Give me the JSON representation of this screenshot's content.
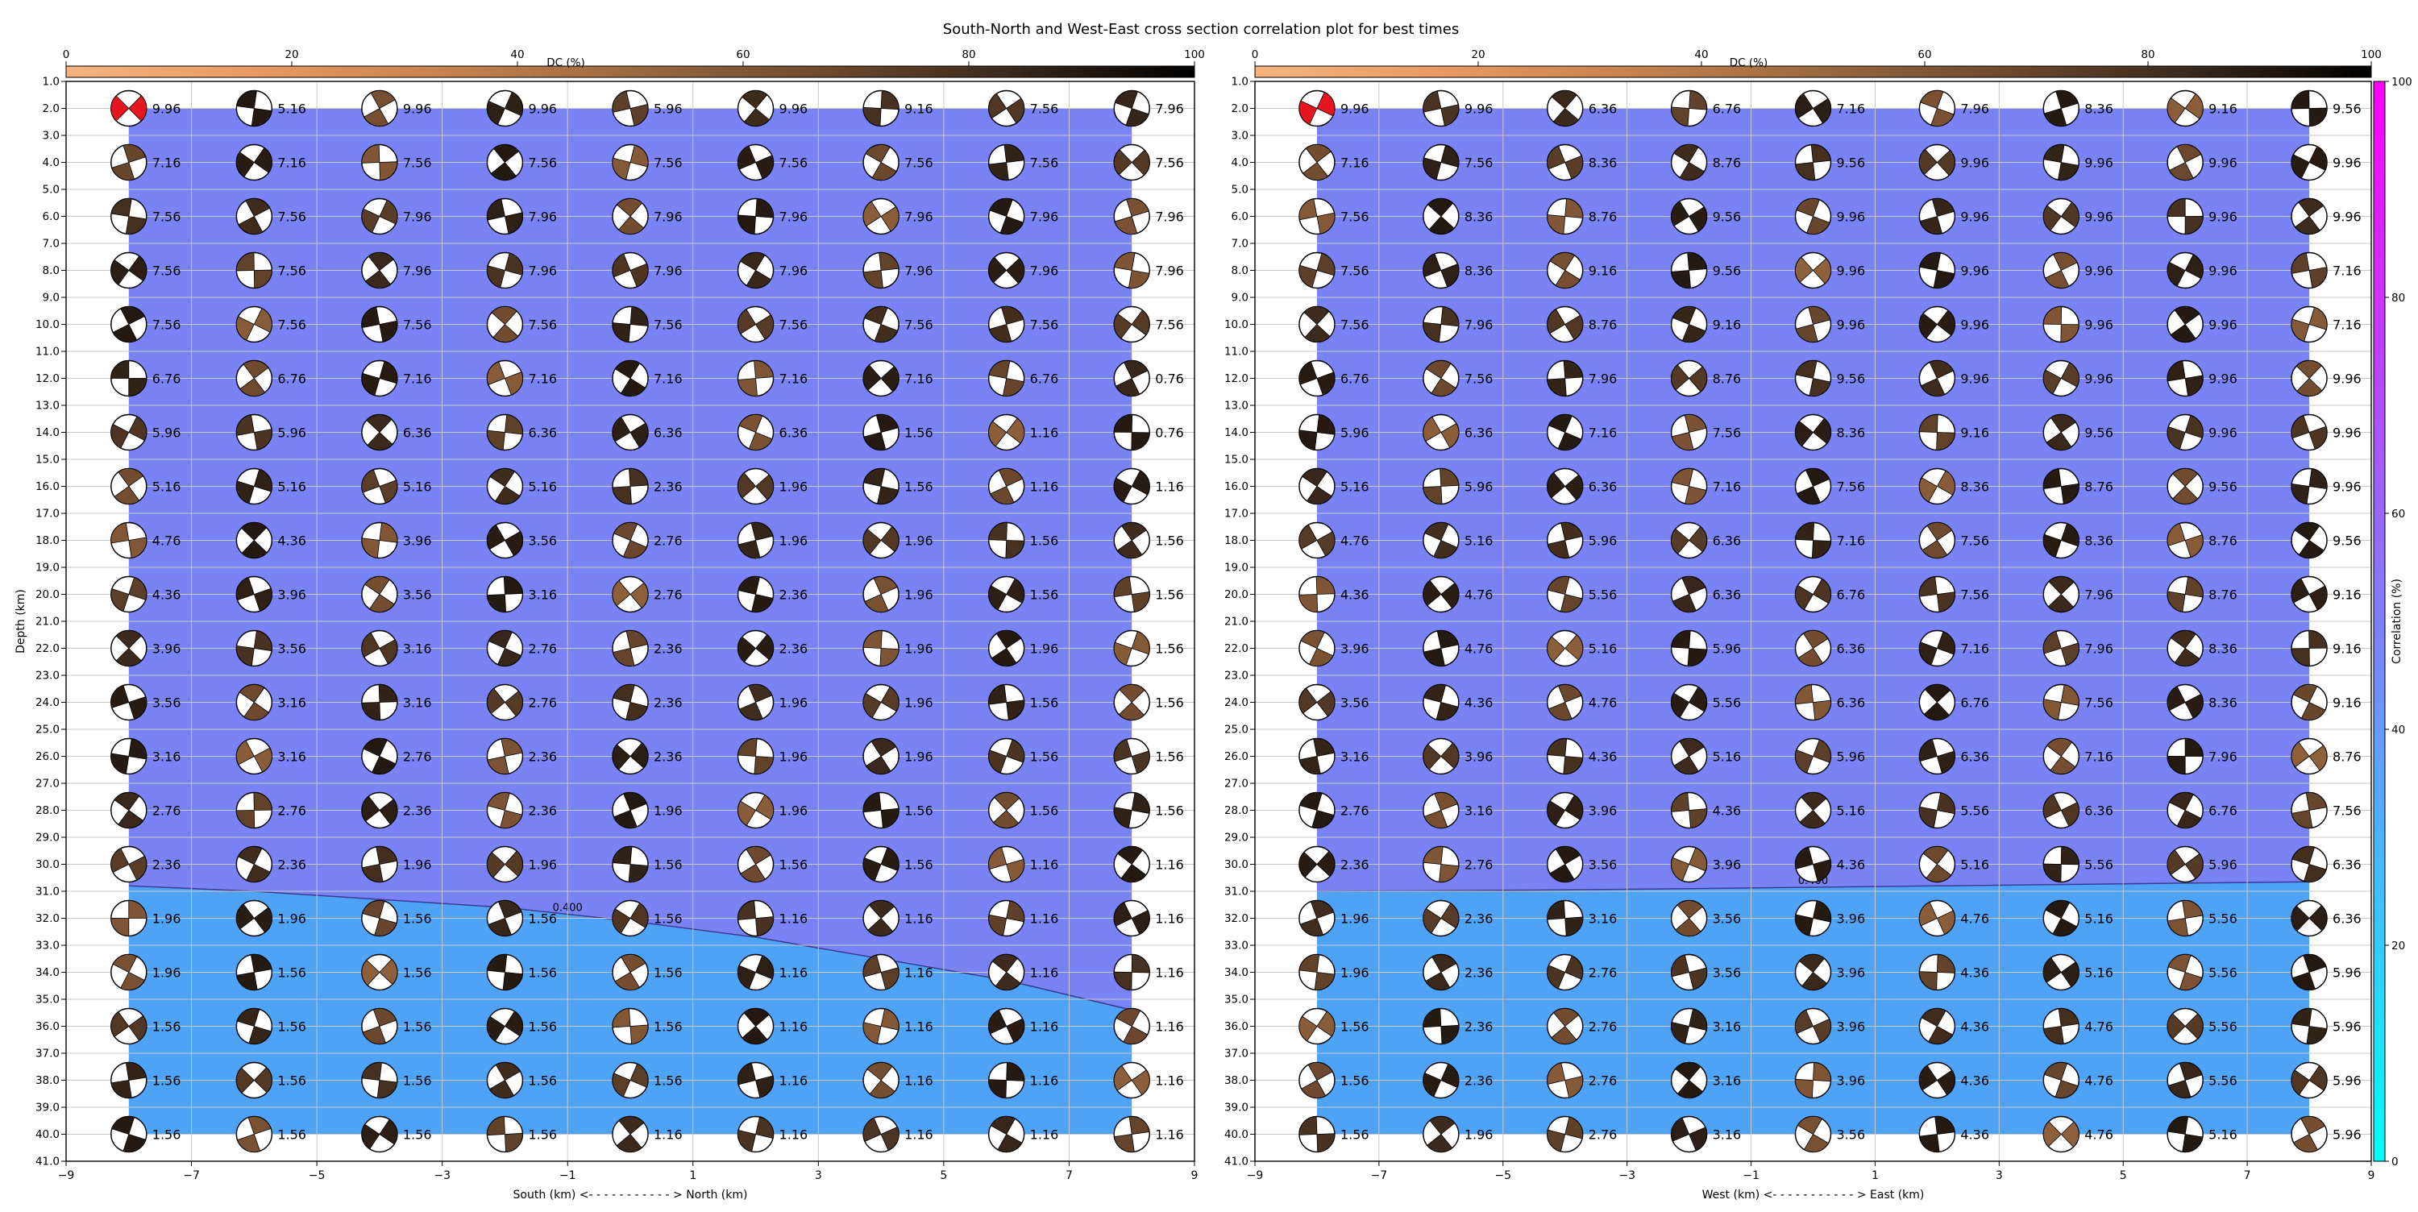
{
  "figure": {
    "title": "South-North and West-East cross section correlation plot for best times"
  },
  "colors": {
    "fill_low": "#4fa3f7",
    "fill_high": "#7a83f6",
    "grid": "#c8c8c8",
    "contour": "#3b3b8f",
    "dc_cmap": [
      "#f5b47e",
      "#e89a63",
      "#c8824d",
      "#9c6a40",
      "#6f4a2f",
      "#3c2a1c",
      "#000000"
    ],
    "corr_cmap": [
      "#00ffff",
      "#ff00ff"
    ]
  },
  "dc_colorbar": {
    "label": "DC (%)",
    "ticks": [
      "0",
      "20",
      "40",
      "60",
      "80",
      "100"
    ]
  },
  "corr_colorbar": {
    "label": "Correlation (%)",
    "ticks": [
      "0",
      "20",
      "40",
      "60",
      "80",
      "100"
    ]
  },
  "chart_data": [
    {
      "type": "heatmap",
      "panel": "south-north",
      "xlabel": "South (km) <- - - - - - - - - - - > North (km)",
      "ylabel": "Depth (km)",
      "xlim": [
        -9,
        9
      ],
      "ylim": [
        1,
        41
      ],
      "x_ticks": [
        "−9",
        "−7",
        "−5",
        "−3",
        "−1",
        "1",
        "3",
        "5",
        "7",
        "9"
      ],
      "y_ticks": [
        "1.0",
        "2.0",
        "3.0",
        "4.0",
        "5.0",
        "6.0",
        "7.0",
        "8.0",
        "9.0",
        "10.0",
        "11.0",
        "12.0",
        "13.0",
        "14.0",
        "15.0",
        "16.0",
        "17.0",
        "18.0",
        "19.0",
        "20.0",
        "21.0",
        "22.0",
        "23.0",
        "24.0",
        "25.0",
        "26.0",
        "27.0",
        "28.0",
        "29.0",
        "30.0",
        "31.0",
        "32.0",
        "33.0",
        "34.0",
        "35.0",
        "36.0",
        "37.0",
        "38.0",
        "39.0",
        "40.0",
        "41.0"
      ],
      "x": [
        -8,
        -6,
        -4,
        -2,
        0,
        2,
        4,
        6,
        8
      ],
      "depths": [
        2,
        4,
        6,
        8,
        10,
        12,
        14,
        16,
        18,
        20,
        22,
        24,
        26,
        28,
        30,
        32,
        34,
        36,
        38,
        40
      ],
      "contour_label": "0.400",
      "contour_label_x": -1,
      "contour_depth": [
        30.8,
        31.0,
        31.3,
        31.6,
        32.1,
        32.7,
        33.5,
        34.3,
        35.4
      ],
      "times": [
        [
          "9.96",
          "5.16",
          "9.96",
          "9.96",
          "5.96",
          "9.96",
          "9.16",
          "7.56",
          "7.96"
        ],
        [
          "7.16",
          "7.16",
          "7.56",
          "7.56",
          "7.56",
          "7.56",
          "7.56",
          "7.56",
          "7.56"
        ],
        [
          "7.56",
          "7.56",
          "7.96",
          "7.96",
          "7.96",
          "7.96",
          "7.96",
          "7.96",
          "7.96"
        ],
        [
          "7.56",
          "7.56",
          "7.96",
          "7.96",
          "7.96",
          "7.96",
          "7.96",
          "7.96",
          "7.96"
        ],
        [
          "7.56",
          "7.56",
          "7.56",
          "7.56",
          "7.56",
          "7.56",
          "7.56",
          "7.56",
          "7.56"
        ],
        [
          "6.76",
          "6.76",
          "7.16",
          "7.16",
          "7.16",
          "7.16",
          "7.16",
          "6.76",
          "0.76"
        ],
        [
          "5.96",
          "5.96",
          "6.36",
          "6.36",
          "6.36",
          "6.36",
          "1.56",
          "1.16",
          "0.76"
        ],
        [
          "5.16",
          "5.16",
          "5.16",
          "5.16",
          "2.36",
          "1.96",
          "1.56",
          "1.16",
          "1.16"
        ],
        [
          "4.76",
          "4.36",
          "3.96",
          "3.56",
          "2.76",
          "1.96",
          "1.96",
          "1.56",
          "1.56"
        ],
        [
          "4.36",
          "3.96",
          "3.56",
          "3.16",
          "2.76",
          "2.36",
          "1.96",
          "1.56",
          "1.56"
        ],
        [
          "3.96",
          "3.56",
          "3.16",
          "2.76",
          "2.36",
          "2.36",
          "1.96",
          "1.96",
          "1.56"
        ],
        [
          "3.56",
          "3.16",
          "3.16",
          "2.76",
          "2.36",
          "1.96",
          "1.96",
          "1.56",
          "1.56"
        ],
        [
          "3.16",
          "3.16",
          "2.76",
          "2.36",
          "2.36",
          "1.96",
          "1.96",
          "1.56",
          "1.56"
        ],
        [
          "2.76",
          "2.76",
          "2.36",
          "2.36",
          "1.96",
          "1.96",
          "1.56",
          "1.56",
          "1.56"
        ],
        [
          "2.36",
          "2.36",
          "1.96",
          "1.96",
          "1.56",
          "1.56",
          "1.56",
          "1.16",
          "1.16"
        ],
        [
          "1.96",
          "1.96",
          "1.56",
          "1.56",
          "1.56",
          "1.16",
          "1.16",
          "1.16",
          "1.16"
        ],
        [
          "1.96",
          "1.56",
          "1.56",
          "1.56",
          "1.56",
          "1.16",
          "1.16",
          "1.16",
          "1.16"
        ],
        [
          "1.56",
          "1.56",
          "1.56",
          "1.56",
          "1.56",
          "1.16",
          "1.16",
          "1.16",
          "1.16"
        ],
        [
          "1.56",
          "1.56",
          "1.56",
          "1.56",
          "1.56",
          "1.16",
          "1.16",
          "1.16",
          "1.16"
        ],
        [
          "1.56",
          "1.56",
          "1.56",
          "1.56",
          "1.16",
          "1.16",
          "1.16",
          "1.16",
          "1.16"
        ]
      ]
    },
    {
      "type": "heatmap",
      "panel": "west-east",
      "xlabel": "West (km) <- - - - - - - - - - - > East (km)",
      "ylabel": "",
      "xlim": [
        -9,
        9
      ],
      "ylim": [
        1,
        41
      ],
      "x_ticks": [
        "−9",
        "−7",
        "−5",
        "−3",
        "−1",
        "1",
        "3",
        "5",
        "7",
        "9"
      ],
      "y_ticks": [
        "1.0",
        "2.0",
        "3.0",
        "4.0",
        "5.0",
        "6.0",
        "7.0",
        "8.0",
        "9.0",
        "10.0",
        "11.0",
        "12.0",
        "13.0",
        "14.0",
        "15.0",
        "16.0",
        "17.0",
        "18.0",
        "19.0",
        "20.0",
        "21.0",
        "22.0",
        "23.0",
        "24.0",
        "25.0",
        "26.0",
        "27.0",
        "28.0",
        "29.0",
        "30.0",
        "31.0",
        "32.0",
        "33.0",
        "34.0",
        "35.0",
        "36.0",
        "37.0",
        "38.0",
        "39.0",
        "40.0",
        "41.0"
      ],
      "x": [
        -8,
        -6,
        -4,
        -2,
        0,
        2,
        4,
        6,
        8
      ],
      "depths": [
        2,
        4,
        6,
        8,
        10,
        12,
        14,
        16,
        18,
        20,
        22,
        24,
        26,
        28,
        30,
        32,
        34,
        36,
        38,
        40
      ],
      "contour_label": "0.400",
      "contour_label_x": 0,
      "contour_depth": [
        31.0,
        30.98,
        30.95,
        30.9,
        30.85,
        30.8,
        30.75,
        30.7,
        30.65
      ],
      "times": [
        [
          "9.96",
          "9.96",
          "6.36",
          "6.76",
          "7.16",
          "7.96",
          "8.36",
          "9.16",
          "9.56"
        ],
        [
          "7.16",
          "7.56",
          "8.36",
          "8.76",
          "9.56",
          "9.96",
          "9.96",
          "9.96",
          "9.96"
        ],
        [
          "7.56",
          "8.36",
          "8.76",
          "9.56",
          "9.96",
          "9.96",
          "9.96",
          "9.96",
          "9.96"
        ],
        [
          "7.56",
          "8.36",
          "9.16",
          "9.56",
          "9.96",
          "9.96",
          "9.96",
          "9.96",
          "7.16"
        ],
        [
          "7.56",
          "7.96",
          "8.76",
          "9.16",
          "9.96",
          "9.96",
          "9.96",
          "9.96",
          "7.16"
        ],
        [
          "6.76",
          "7.56",
          "7.96",
          "8.76",
          "9.56",
          "9.96",
          "9.96",
          "9.96",
          "9.96"
        ],
        [
          "5.96",
          "6.36",
          "7.16",
          "7.56",
          "8.36",
          "9.16",
          "9.56",
          "9.96",
          "9.96"
        ],
        [
          "5.16",
          "5.96",
          "6.36",
          "7.16",
          "7.56",
          "8.36",
          "8.76",
          "9.56",
          "9.96"
        ],
        [
          "4.76",
          "5.16",
          "5.96",
          "6.36",
          "7.16",
          "7.56",
          "8.36",
          "8.76",
          "9.56"
        ],
        [
          "4.36",
          "4.76",
          "5.56",
          "6.36",
          "6.76",
          "7.56",
          "7.96",
          "8.76",
          "9.16"
        ],
        [
          "3.96",
          "4.76",
          "5.16",
          "5.96",
          "6.36",
          "7.16",
          "7.96",
          "8.36",
          "9.16"
        ],
        [
          "3.56",
          "4.36",
          "4.76",
          "5.56",
          "6.36",
          "6.76",
          "7.56",
          "8.36",
          "9.16"
        ],
        [
          "3.16",
          "3.96",
          "4.36",
          "5.16",
          "5.96",
          "6.36",
          "7.16",
          "7.96",
          "8.76"
        ],
        [
          "2.76",
          "3.16",
          "3.96",
          "4.36",
          "5.16",
          "5.56",
          "6.36",
          "6.76",
          "7.56"
        ],
        [
          "2.36",
          "2.76",
          "3.56",
          "3.96",
          "4.36",
          "5.16",
          "5.56",
          "5.96",
          "6.36"
        ],
        [
          "1.96",
          "2.36",
          "3.16",
          "3.56",
          "3.96",
          "4.76",
          "5.16",
          "5.56",
          "6.36"
        ],
        [
          "1.96",
          "2.36",
          "2.76",
          "3.56",
          "3.96",
          "4.36",
          "5.16",
          "5.56",
          "5.96"
        ],
        [
          "1.56",
          "2.36",
          "2.76",
          "3.16",
          "3.96",
          "4.36",
          "4.76",
          "5.56",
          "5.96"
        ],
        [
          "1.56",
          "2.36",
          "2.76",
          "3.16",
          "3.96",
          "4.36",
          "4.76",
          "5.56",
          "5.96"
        ],
        [
          "1.56",
          "1.96",
          "2.76",
          "3.16",
          "3.56",
          "4.36",
          "4.76",
          "5.16",
          "5.96"
        ]
      ]
    }
  ]
}
